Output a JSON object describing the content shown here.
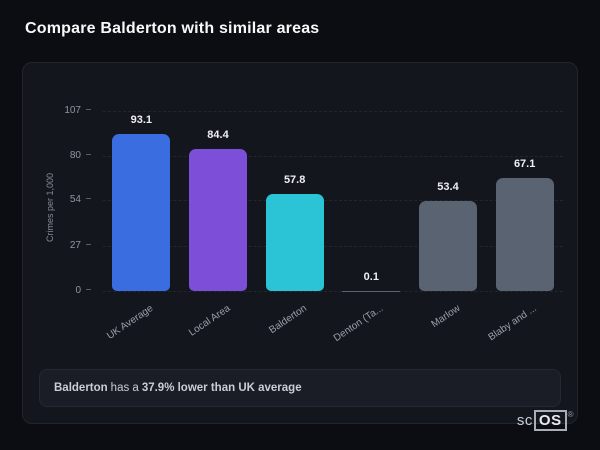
{
  "page": {
    "title": "Compare Balderton with similar areas"
  },
  "chart_data": {
    "type": "bar",
    "title": "",
    "categories": [
      "UK Average",
      "Local Area",
      "Balderton",
      "Denton (Ta...",
      "Marlow",
      "Blaby and ..."
    ],
    "values": [
      93.1,
      84.4,
      57.8,
      0.1,
      53.4,
      67.1
    ],
    "value_labels": [
      "93.1",
      "84.4",
      "57.8",
      "0.1",
      "53.4",
      "67.1"
    ],
    "bar_colors": [
      "#3a6de0",
      "#7d4ed8",
      "#2bc3d6",
      "#5a6372",
      "#5a6372",
      "#5a6372"
    ],
    "xlabel": "",
    "ylabel": "Crimes per 1,000",
    "yticks": [
      0,
      27,
      54,
      80,
      107
    ],
    "ylim": [
      0,
      107
    ],
    "grid": "horizontal-dashed",
    "legend": "none"
  },
  "note": {
    "subject": "Balderton",
    "middle": " has a ",
    "highlight": "37.9% lower than UK average"
  },
  "logo": {
    "prefix": "sc",
    "boxed": "OS",
    "reg": "®"
  },
  "colors": {
    "background": "#0b0d12",
    "card": "#13161d",
    "accent_teal": "#2bc3d6",
    "accent_green": "#37c863",
    "bar_blue": "#3a6de0",
    "bar_purple": "#7d4ed8",
    "bar_gray": "#5a6372"
  }
}
